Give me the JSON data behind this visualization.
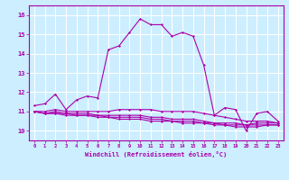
{
  "xlabel": "Windchill (Refroidissement éolien,°C)",
  "ylabel": "",
  "xlim": [
    -0.5,
    23.5
  ],
  "ylim": [
    9.5,
    16.5
  ],
  "yticks": [
    10,
    11,
    12,
    13,
    14,
    15,
    16
  ],
  "xticks": [
    0,
    1,
    2,
    3,
    4,
    5,
    6,
    7,
    8,
    9,
    10,
    11,
    12,
    13,
    14,
    15,
    16,
    17,
    18,
    19,
    20,
    21,
    22,
    23
  ],
  "bg_color": "#cceeff",
  "grid_color": "#ffffff",
  "line_color": "#aa00aa",
  "line1": [
    11.3,
    11.4,
    11.9,
    11.1,
    11.6,
    11.8,
    11.7,
    14.2,
    14.4,
    15.1,
    15.8,
    15.5,
    15.5,
    14.9,
    15.1,
    14.9,
    13.4,
    10.8,
    11.2,
    11.1,
    10.0,
    10.9,
    11.0,
    10.5
  ],
  "line2": [
    11.0,
    11.0,
    11.1,
    11.0,
    11.0,
    11.0,
    11.0,
    11.0,
    11.1,
    11.1,
    11.1,
    11.1,
    11.0,
    11.0,
    11.0,
    11.0,
    10.9,
    10.8,
    10.7,
    10.6,
    10.5,
    10.5,
    10.5,
    10.4
  ],
  "line3": [
    11.0,
    10.9,
    11.0,
    10.9,
    10.9,
    10.9,
    10.8,
    10.8,
    10.8,
    10.8,
    10.8,
    10.7,
    10.7,
    10.6,
    10.6,
    10.6,
    10.5,
    10.4,
    10.4,
    10.4,
    10.3,
    10.4,
    10.4,
    10.4
  ],
  "line4": [
    11.0,
    10.9,
    10.9,
    10.9,
    10.8,
    10.8,
    10.8,
    10.7,
    10.7,
    10.7,
    10.7,
    10.6,
    10.6,
    10.5,
    10.5,
    10.5,
    10.4,
    10.4,
    10.3,
    10.3,
    10.3,
    10.3,
    10.3,
    10.3
  ],
  "line5": [
    11.0,
    10.9,
    10.9,
    10.8,
    10.8,
    10.8,
    10.7,
    10.7,
    10.6,
    10.6,
    10.6,
    10.5,
    10.5,
    10.5,
    10.4,
    10.4,
    10.4,
    10.3,
    10.3,
    10.2,
    10.2,
    10.2,
    10.3,
    10.3
  ]
}
